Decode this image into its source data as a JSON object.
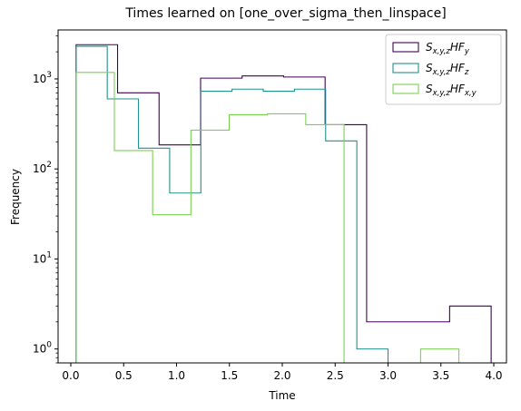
{
  "chart_data": {
    "type": "step-histogram",
    "title": "Times learned on [one_over_sigma_then_linspace]",
    "xlabel": "Time",
    "ylabel": "Frequency",
    "yscale": "log",
    "xlim": [
      -0.12,
      4.12
    ],
    "ylim": [
      0.7,
      3500
    ],
    "x_ticks": [
      0.0,
      0.5,
      1.0,
      1.5,
      2.0,
      2.5,
      3.0,
      3.5,
      4.0
    ],
    "x_tick_labels": [
      "0.0",
      "0.5",
      "1.0",
      "1.5",
      "2.0",
      "2.5",
      "3.0",
      "3.5",
      "4.0"
    ],
    "y_ticks": [
      1,
      10,
      100,
      1000
    ],
    "y_tick_labels": [
      "10^0",
      "10^1",
      "10^2",
      "10^3"
    ],
    "legend_position": "top-right",
    "series": [
      {
        "name": "S_{x,y,z}HF_y",
        "label_main": "S",
        "label_sub": "x,y,z",
        "label_tail": "HF",
        "label_tail_sub": "y",
        "color": "#440154",
        "edges": [
          0.05,
          0.4425,
          0.835,
          1.2275,
          1.62,
          2.0125,
          2.405,
          2.7975,
          3.19,
          3.5825,
          3.975
        ],
        "values": [
          2400,
          700,
          185,
          1020,
          1080,
          1050,
          310,
          2,
          2,
          3
        ]
      },
      {
        "name": "S_{x,y,z}HF_z",
        "label_main": "S",
        "label_sub": "x,y,z",
        "label_tail": "HF",
        "label_tail_sub": "z",
        "color": "#21918c",
        "edges": [
          0.05,
          0.345,
          0.64,
          0.935,
          1.23,
          1.525,
          1.82,
          2.115,
          2.41,
          2.705,
          3.0
        ],
        "values": [
          2300,
          600,
          170,
          54,
          730,
          770,
          730,
          770,
          205,
          1
        ]
      },
      {
        "name": "S_{x,y,z}HF_{x,y}",
        "label_main": "S",
        "label_sub": "x,y,z",
        "label_tail": "HF",
        "label_tail_sub": "x,y",
        "color": "#7ad151",
        "edges": [
          0.05,
          0.412,
          0.774,
          1.136,
          1.498,
          1.86,
          2.222,
          2.584,
          2.946,
          3.308,
          3.67
        ],
        "values": [
          1180,
          160,
          31,
          270,
          400,
          410,
          310,
          0,
          0,
          1
        ]
      }
    ]
  }
}
